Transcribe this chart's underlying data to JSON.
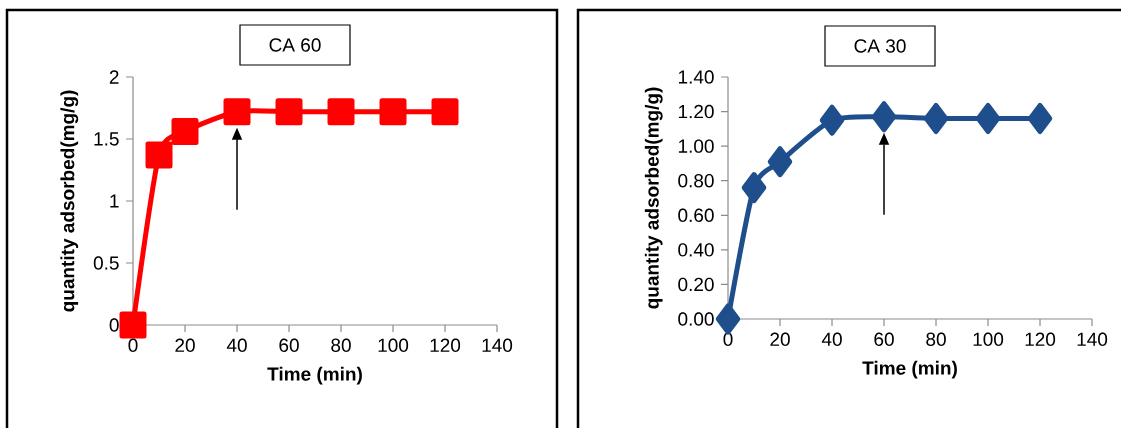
{
  "chart_data": [
    {
      "type": "line",
      "title": "CA 60",
      "xlabel": "Time (min)",
      "ylabel": "quantity adsorbed(mg/g)",
      "x": [
        0,
        10,
        20,
        40,
        60,
        80,
        100,
        120
      ],
      "series": [
        {
          "color": "#ff0000",
          "values": [
            0,
            1.37,
            1.56,
            1.72,
            1.72,
            1.72,
            1.72,
            1.72
          ]
        }
      ],
      "marker": "square",
      "xlim": [
        0,
        140
      ],
      "ylim": [
        0,
        2
      ],
      "xticks": [
        0,
        20,
        40,
        60,
        80,
        100,
        120,
        140
      ],
      "yticks": [
        0,
        0.5,
        1,
        1.5,
        2
      ],
      "grid": false
    },
    {
      "type": "line",
      "title": "CA 30",
      "xlabel": "Time (min)",
      "ylabel": "quantity adsorbed(mg/g)",
      "x": [
        0,
        10,
        20,
        40,
        60,
        80,
        100,
        120
      ],
      "series": [
        {
          "color": "#1f4e8c",
          "values": [
            0,
            0.76,
            0.91,
            1.15,
            1.17,
            1.16,
            1.16,
            1.16
          ]
        }
      ],
      "marker": "diamond",
      "xlim": [
        0,
        140
      ],
      "ylim": [
        0,
        1.4
      ],
      "xticks": [
        0,
        20,
        40,
        60,
        80,
        100,
        120,
        140
      ],
      "yticks": [
        {
          "value": 0,
          "label": "0.00"
        },
        {
          "value": 0.2,
          "label": "0.20"
        },
        {
          "value": 0.4,
          "label": "0.40"
        },
        {
          "value": 0.6,
          "label": "0.60"
        },
        {
          "value": 0.8,
          "label": "0.80"
        },
        {
          "value": 1.0,
          "label": "1.00"
        },
        {
          "value": 1.2,
          "label": "1.20"
        },
        {
          "value": 1.4,
          "label": "1.40"
        }
      ],
      "grid": false
    }
  ]
}
